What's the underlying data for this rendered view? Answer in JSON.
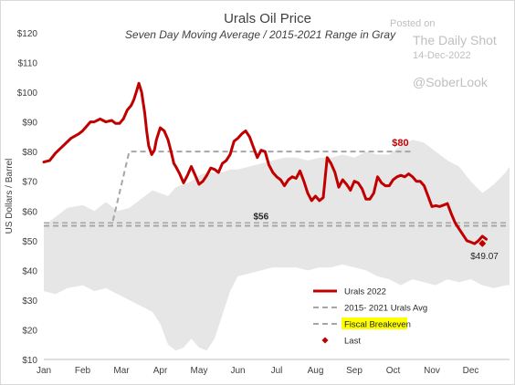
{
  "chart_data": {
    "type": "line",
    "title": "Urals Oil Price",
    "subtitle": "Seven Day Moving Average / 2015-2021 Range in Gray",
    "ylabel": "US Dollars / Barrel",
    "ylim": [
      10,
      120
    ],
    "yticks": [
      "$10",
      "$20",
      "$30",
      "$40",
      "$50",
      "$60",
      "$70",
      "$80",
      "$90",
      "$100",
      "$110",
      "$120"
    ],
    "xlim": [
      0,
      12
    ],
    "xticks": [
      "Jan",
      "Feb",
      "Mar",
      "Apr",
      "May",
      "Jun",
      "Jul",
      "Aug",
      "Sep",
      "Oct",
      "Nov",
      "Dec"
    ],
    "grid": false,
    "legend_position": "bottom-center",
    "range_band": {
      "name": "2015-2021 Range",
      "x": [
        0,
        0.3,
        0.6,
        1.0,
        1.3,
        1.6,
        1.9,
        2.2,
        2.5,
        2.8,
        3.0,
        3.2,
        3.4,
        3.6,
        3.8,
        4.0,
        4.2,
        4.4,
        4.6,
        4.8,
        5.0,
        5.3,
        5.6,
        5.9,
        6.2,
        6.5,
        6.8,
        7.1,
        7.4,
        7.7,
        8.0,
        8.3,
        8.6,
        8.9,
        9.2,
        9.5,
        9.8,
        10.1,
        10.4,
        10.7,
        11.0,
        11.3,
        11.6,
        11.9,
        12.0
      ],
      "upper": [
        55,
        58,
        61,
        62,
        60,
        63,
        60,
        61,
        64,
        67,
        66,
        65,
        68,
        69,
        70,
        72,
        73,
        73,
        73,
        74,
        74,
        75,
        76,
        77,
        78,
        78,
        77,
        78,
        78,
        79,
        78,
        80,
        79,
        79,
        82,
        84,
        83,
        80,
        77,
        75,
        70,
        66,
        69,
        73,
        75
      ],
      "lower": [
        33,
        32,
        34,
        35,
        33,
        34,
        32,
        30,
        28,
        26,
        22,
        15,
        13,
        14,
        17,
        14,
        13,
        17,
        25,
        33,
        38,
        39,
        40,
        41,
        41,
        41,
        40,
        41,
        41,
        42,
        41,
        40,
        38,
        37,
        35,
        37,
        36,
        35,
        37,
        36,
        37,
        35,
        34,
        35,
        35
      ]
    },
    "series": [
      {
        "name": "Urals 2022",
        "color": "#c00000",
        "x": [
          0,
          0.15,
          0.3,
          0.5,
          0.7,
          0.9,
          1.0,
          1.1,
          1.2,
          1.3,
          1.45,
          1.6,
          1.75,
          1.85,
          1.95,
          2.05,
          2.15,
          2.25,
          2.32,
          2.38,
          2.45,
          2.52,
          2.6,
          2.65,
          2.7,
          2.78,
          2.85,
          2.9,
          3.0,
          3.1,
          3.2,
          3.28,
          3.35,
          3.4,
          3.5,
          3.6,
          3.7,
          3.8,
          3.9,
          4.0,
          4.1,
          4.2,
          4.3,
          4.4,
          4.5,
          4.6,
          4.7,
          4.8,
          4.9,
          5.0,
          5.1,
          5.2,
          5.3,
          5.4,
          5.5,
          5.6,
          5.7,
          5.8,
          5.9,
          6.0,
          6.1,
          6.2,
          6.3,
          6.4,
          6.5,
          6.6,
          6.7,
          6.8,
          6.9,
          7.0,
          7.1,
          7.2,
          7.3,
          7.4,
          7.5,
          7.6,
          7.7,
          7.8,
          7.9,
          8.0,
          8.1,
          8.2,
          8.3,
          8.4,
          8.5,
          8.6,
          8.7,
          8.8,
          8.9,
          9.0,
          9.1,
          9.2,
          9.3,
          9.4,
          9.5,
          9.6,
          9.7,
          9.8,
          9.9,
          10.0,
          10.1,
          10.2,
          10.3,
          10.4,
          10.5,
          10.6,
          10.7,
          10.8,
          10.9,
          11.0,
          11.1,
          11.2,
          11.3,
          11.4
        ],
        "values": [
          76.5,
          77,
          79.5,
          82,
          84.5,
          86,
          87,
          88.5,
          90,
          90,
          91,
          90,
          90.5,
          89.5,
          89.5,
          91,
          94,
          95.5,
          97.5,
          100,
          103,
          100,
          93,
          87,
          82,
          79,
          80.5,
          84,
          88,
          87,
          84,
          80,
          76,
          75,
          72.5,
          69.5,
          72,
          75,
          72,
          69,
          70,
          72,
          74.5,
          74,
          73,
          76,
          77,
          79,
          83.5,
          84.5,
          86,
          87,
          85,
          81.5,
          78,
          80.5,
          80,
          75.5,
          73,
          71.5,
          70.5,
          68.5,
          70.5,
          71.5,
          71,
          73.5,
          70,
          66,
          63.5,
          65,
          63.5,
          64.5,
          78,
          76,
          73,
          68,
          70.5,
          69,
          67,
          70,
          69.5,
          67.5,
          64,
          64,
          66,
          71.5,
          69.5,
          68.5,
          68.5,
          70.5,
          71.5,
          72,
          71.5,
          72.5,
          71.5,
          70,
          70,
          68.5,
          65,
          61.5,
          61.8,
          61.5,
          62,
          62.5,
          59,
          56,
          54,
          52,
          50,
          49.5,
          49,
          50,
          51.5,
          50.5
        ],
        "note": ""
      },
      {
        "name": "2015- 2021 Urals Avg",
        "color": "#a6a6a6",
        "x": [
          0,
          12
        ],
        "values": [
          55,
          55
        ]
      },
      {
        "name": "Fiscal Breakeven",
        "color": "#a6a6a6",
        "x": [
          0,
          1.75,
          2.2,
          9.5
        ],
        "values": [
          55,
          55,
          80,
          80
        ]
      }
    ],
    "annotations": [
      {
        "text": "$80",
        "color": "#c00000",
        "x": 8.9,
        "y": 80
      },
      {
        "text": "$56",
        "color": "#262626",
        "x": 5.4,
        "y": 56
      },
      {
        "text": "$49.07",
        "color": "#262626",
        "x": 11.3,
        "y": 49.07
      }
    ],
    "fiscal_breakeven_bottom": [
      56,
      56
    ],
    "last": {
      "name": "Last",
      "x": 11.3,
      "y": 49.07,
      "color": "#c00000"
    },
    "legend": [
      {
        "label": "Urals 2022",
        "style": "solid",
        "color": "#c00000"
      },
      {
        "label": "2015- 2021 Urals Avg",
        "style": "dashed",
        "color": "#a6a6a6"
      },
      {
        "label": "Fiscal Breakeven",
        "style": "dashed",
        "color": "#a6a6a6",
        "highlight": "#ffff00"
      },
      {
        "label": "Last",
        "style": "marker",
        "color": "#c00000"
      }
    ]
  },
  "watermark": {
    "posted_on": "Posted on",
    "source": "The Daily Shot",
    "date": "14-Dec-2022",
    "handle": "@SoberLook"
  }
}
